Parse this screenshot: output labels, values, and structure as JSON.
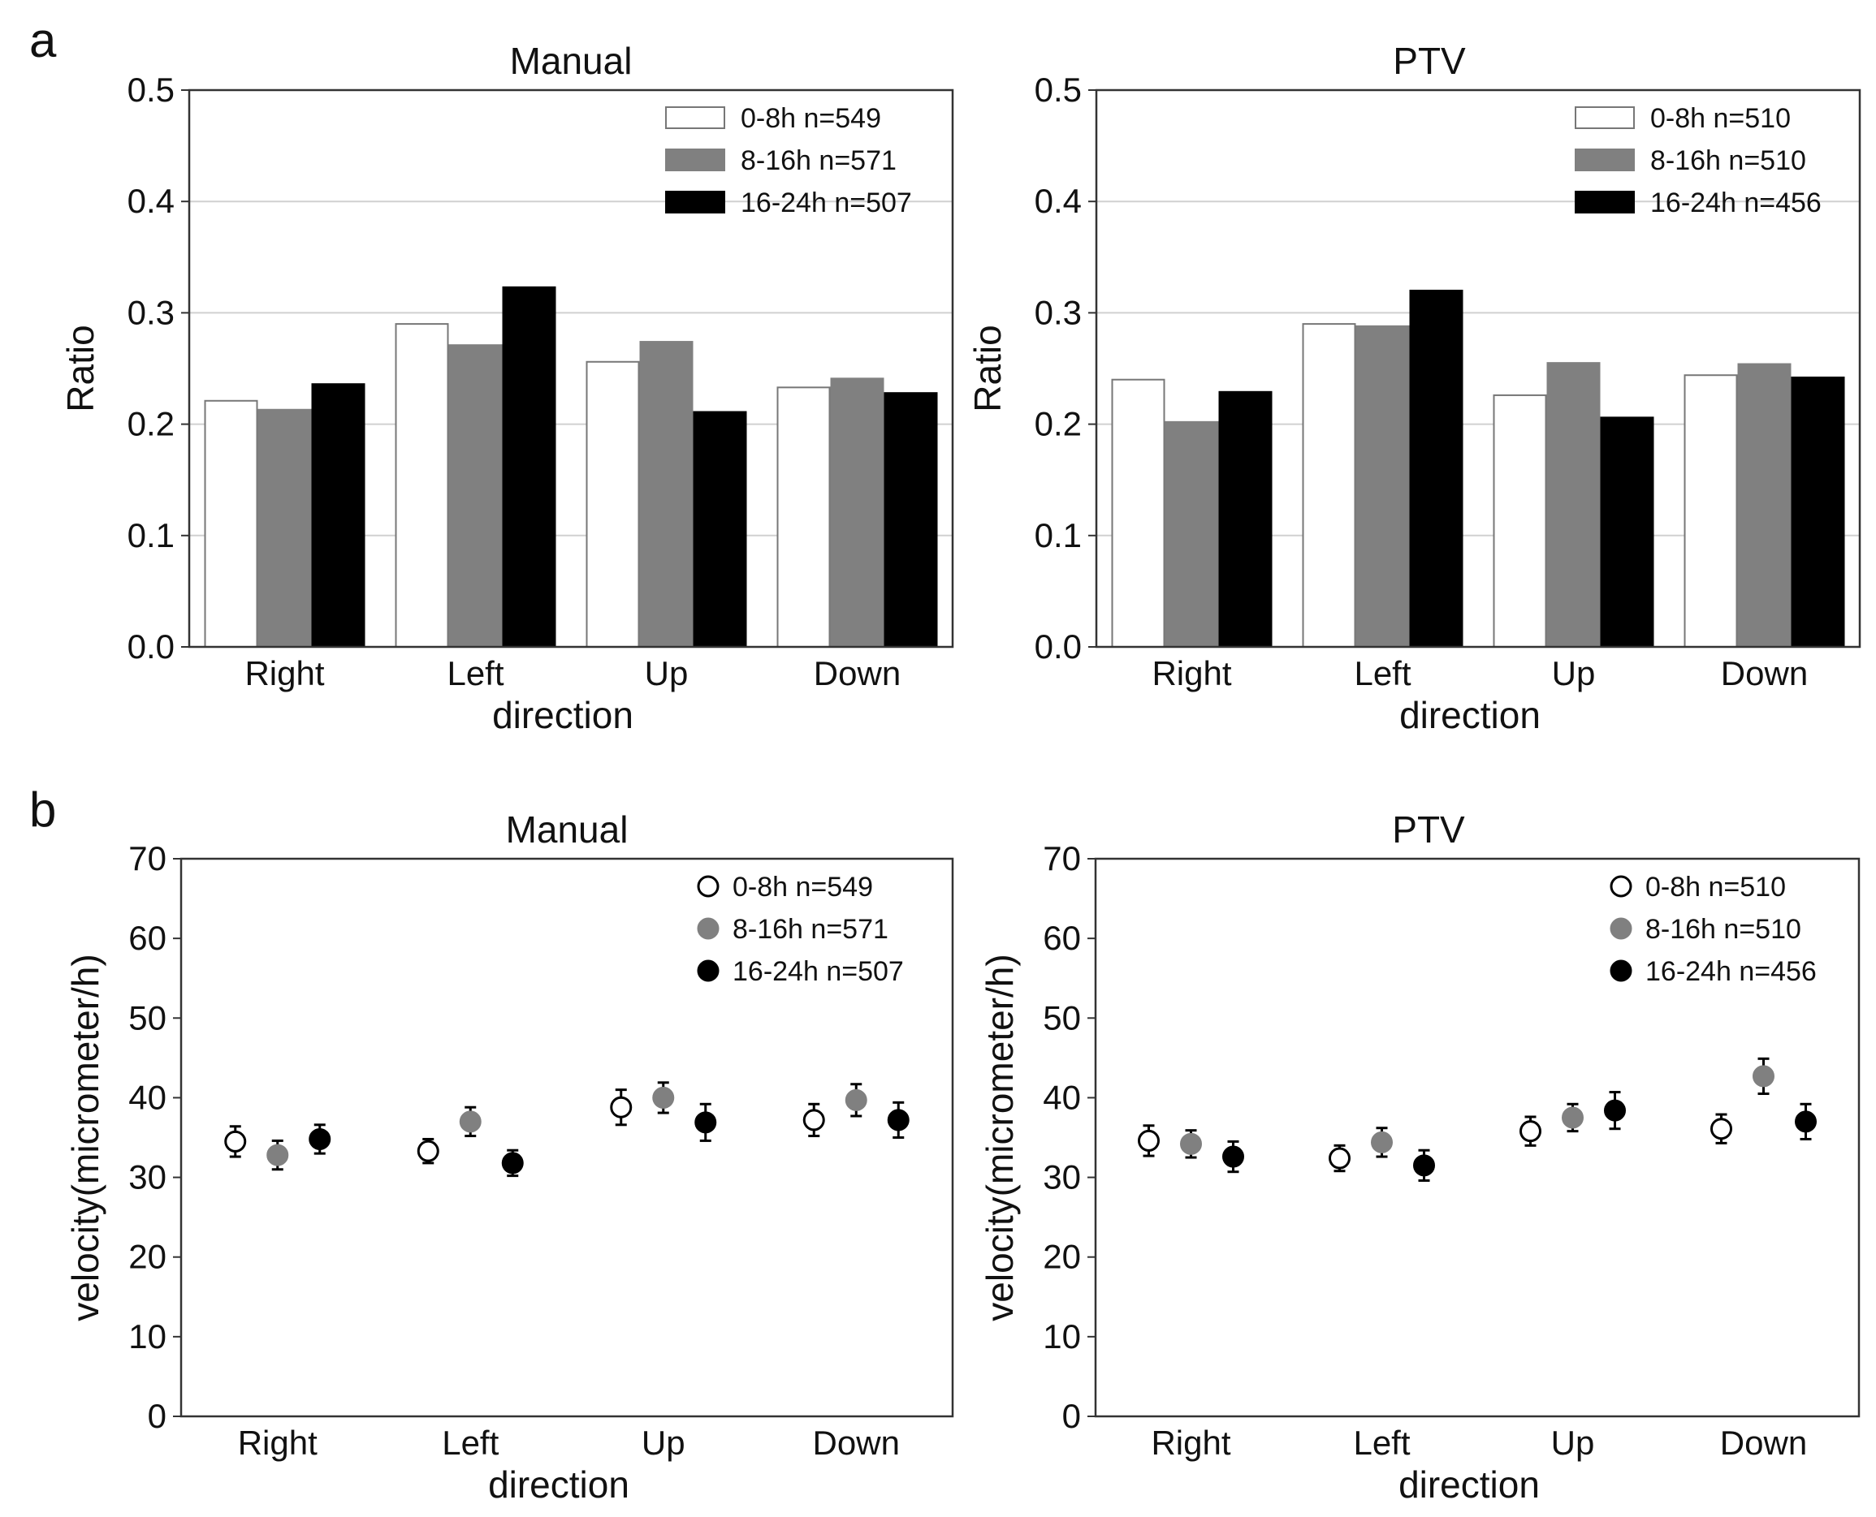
{
  "panels": {
    "a": "a",
    "b": "b"
  },
  "chart_data": [
    {
      "id": "a-manual",
      "type": "bar",
      "title": "Manual",
      "xlabel": "direction",
      "ylabel": "Ratio",
      "ylim": [
        0,
        0.5
      ],
      "yticks": [
        "0.0",
        "0.1",
        "0.2",
        "0.3",
        "0.4",
        "0.5"
      ],
      "grid": true,
      "legend_position": "top-right",
      "categories": [
        "Right",
        "Left",
        "Up",
        "Down"
      ],
      "series": [
        {
          "name": "0-8h n=549",
          "color": "#ffffff",
          "values": [
            0.221,
            0.29,
            0.256,
            0.233
          ]
        },
        {
          "name": "8-16h n=571",
          "color": "#808080",
          "values": [
            0.213,
            0.271,
            0.274,
            0.241
          ]
        },
        {
          "name": "16-24h n=507",
          "color": "#000000",
          "values": [
            0.236,
            0.323,
            0.211,
            0.228
          ]
        }
      ]
    },
    {
      "id": "a-ptv",
      "type": "bar",
      "title": "PTV",
      "xlabel": "direction",
      "ylabel": "Ratio",
      "ylim": [
        0,
        0.5
      ],
      "yticks": [
        "0.0",
        "0.1",
        "0.2",
        "0.3",
        "0.4",
        "0.5"
      ],
      "grid": true,
      "legend_position": "top-right",
      "categories": [
        "Right",
        "Left",
        "Up",
        "Down"
      ],
      "series": [
        {
          "name": "0-8h n=510",
          "color": "#ffffff",
          "values": [
            0.24,
            0.29,
            0.226,
            0.244
          ]
        },
        {
          "name": "8-16h n=510",
          "color": "#808080",
          "values": [
            0.202,
            0.288,
            0.255,
            0.254
          ]
        },
        {
          "name": "16-24h n=456",
          "color": "#000000",
          "values": [
            0.229,
            0.32,
            0.206,
            0.242
          ]
        }
      ]
    },
    {
      "id": "b-manual",
      "type": "scatter",
      "title": "Manual",
      "xlabel": "direction",
      "ylabel": "velocity(micrometer/h)",
      "ylim": [
        0,
        70
      ],
      "yticks": [
        "0",
        "10",
        "20",
        "30",
        "40",
        "50",
        "60",
        "70"
      ],
      "grid": false,
      "legend_position": "top-right",
      "categories": [
        "Right",
        "Left",
        "Up",
        "Down"
      ],
      "series": [
        {
          "name": "0-8h n=549",
          "color": "#ffffff",
          "values": [
            34.5,
            33.3,
            38.8,
            37.2
          ],
          "errors": [
            1.9,
            1.5,
            2.2,
            2.0
          ]
        },
        {
          "name": "8-16h n=571",
          "color": "#808080",
          "values": [
            32.8,
            37.0,
            40.0,
            39.7
          ],
          "errors": [
            1.8,
            1.8,
            1.9,
            2.0
          ]
        },
        {
          "name": "16-24h n=507",
          "color": "#000000",
          "values": [
            34.8,
            31.8,
            36.9,
            37.2
          ],
          "errors": [
            1.8,
            1.6,
            2.3,
            2.2
          ]
        }
      ]
    },
    {
      "id": "b-ptv",
      "type": "scatter",
      "title": "PTV",
      "xlabel": "direction",
      "ylabel": "velocity(micrometer/h)",
      "ylim": [
        0,
        70
      ],
      "yticks": [
        "0",
        "10",
        "20",
        "30",
        "40",
        "50",
        "60",
        "70"
      ],
      "grid": false,
      "legend_position": "top-right",
      "categories": [
        "Right",
        "Left",
        "Up",
        "Down"
      ],
      "series": [
        {
          "name": "0-8h n=510",
          "color": "#ffffff",
          "values": [
            34.6,
            32.4,
            35.8,
            36.1
          ],
          "errors": [
            1.9,
            1.6,
            1.8,
            1.8
          ]
        },
        {
          "name": "8-16h n=510",
          "color": "#808080",
          "values": [
            34.2,
            34.4,
            37.5,
            42.7
          ],
          "errors": [
            1.7,
            1.8,
            1.7,
            2.2
          ]
        },
        {
          "name": "16-24h n=456",
          "color": "#000000",
          "values": [
            32.6,
            31.5,
            38.4,
            37.0
          ],
          "errors": [
            1.9,
            1.9,
            2.3,
            2.2
          ]
        }
      ]
    }
  ]
}
